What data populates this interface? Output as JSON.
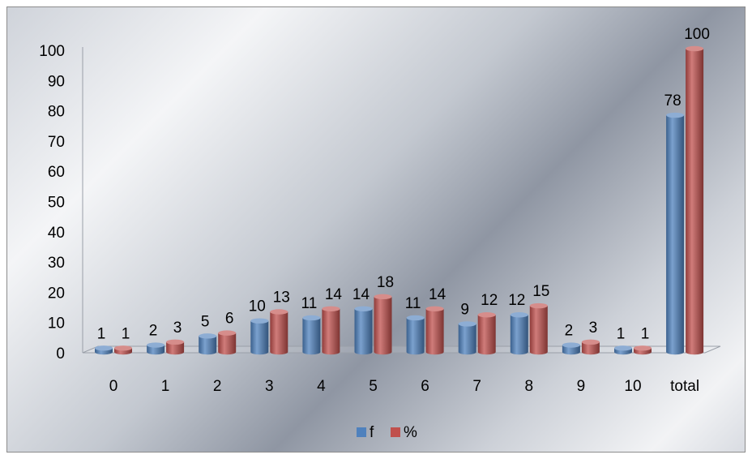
{
  "chart_data": {
    "type": "bar",
    "categories": [
      "0",
      "1",
      "2",
      "3",
      "4",
      "5",
      "6",
      "7",
      "8",
      "9",
      "10",
      "total"
    ],
    "series": [
      {
        "name": "f",
        "values": [
          1,
          2,
          5,
          10,
          11,
          14,
          11,
          9,
          12,
          2,
          1,
          78
        ],
        "color": "#4f81bd"
      },
      {
        "name": "%",
        "values": [
          1,
          3,
          6,
          13,
          14,
          18,
          14,
          12,
          15,
          3,
          1,
          100
        ],
        "color": "#c0504d"
      }
    ],
    "yticks": [
      "0",
      "10",
      "20",
      "30",
      "40",
      "50",
      "60",
      "70",
      "80",
      "90",
      "100"
    ],
    "ylim": [
      0,
      100
    ],
    "legend_position": "bottom",
    "data_labels": true,
    "style": "3d-cylinder"
  }
}
